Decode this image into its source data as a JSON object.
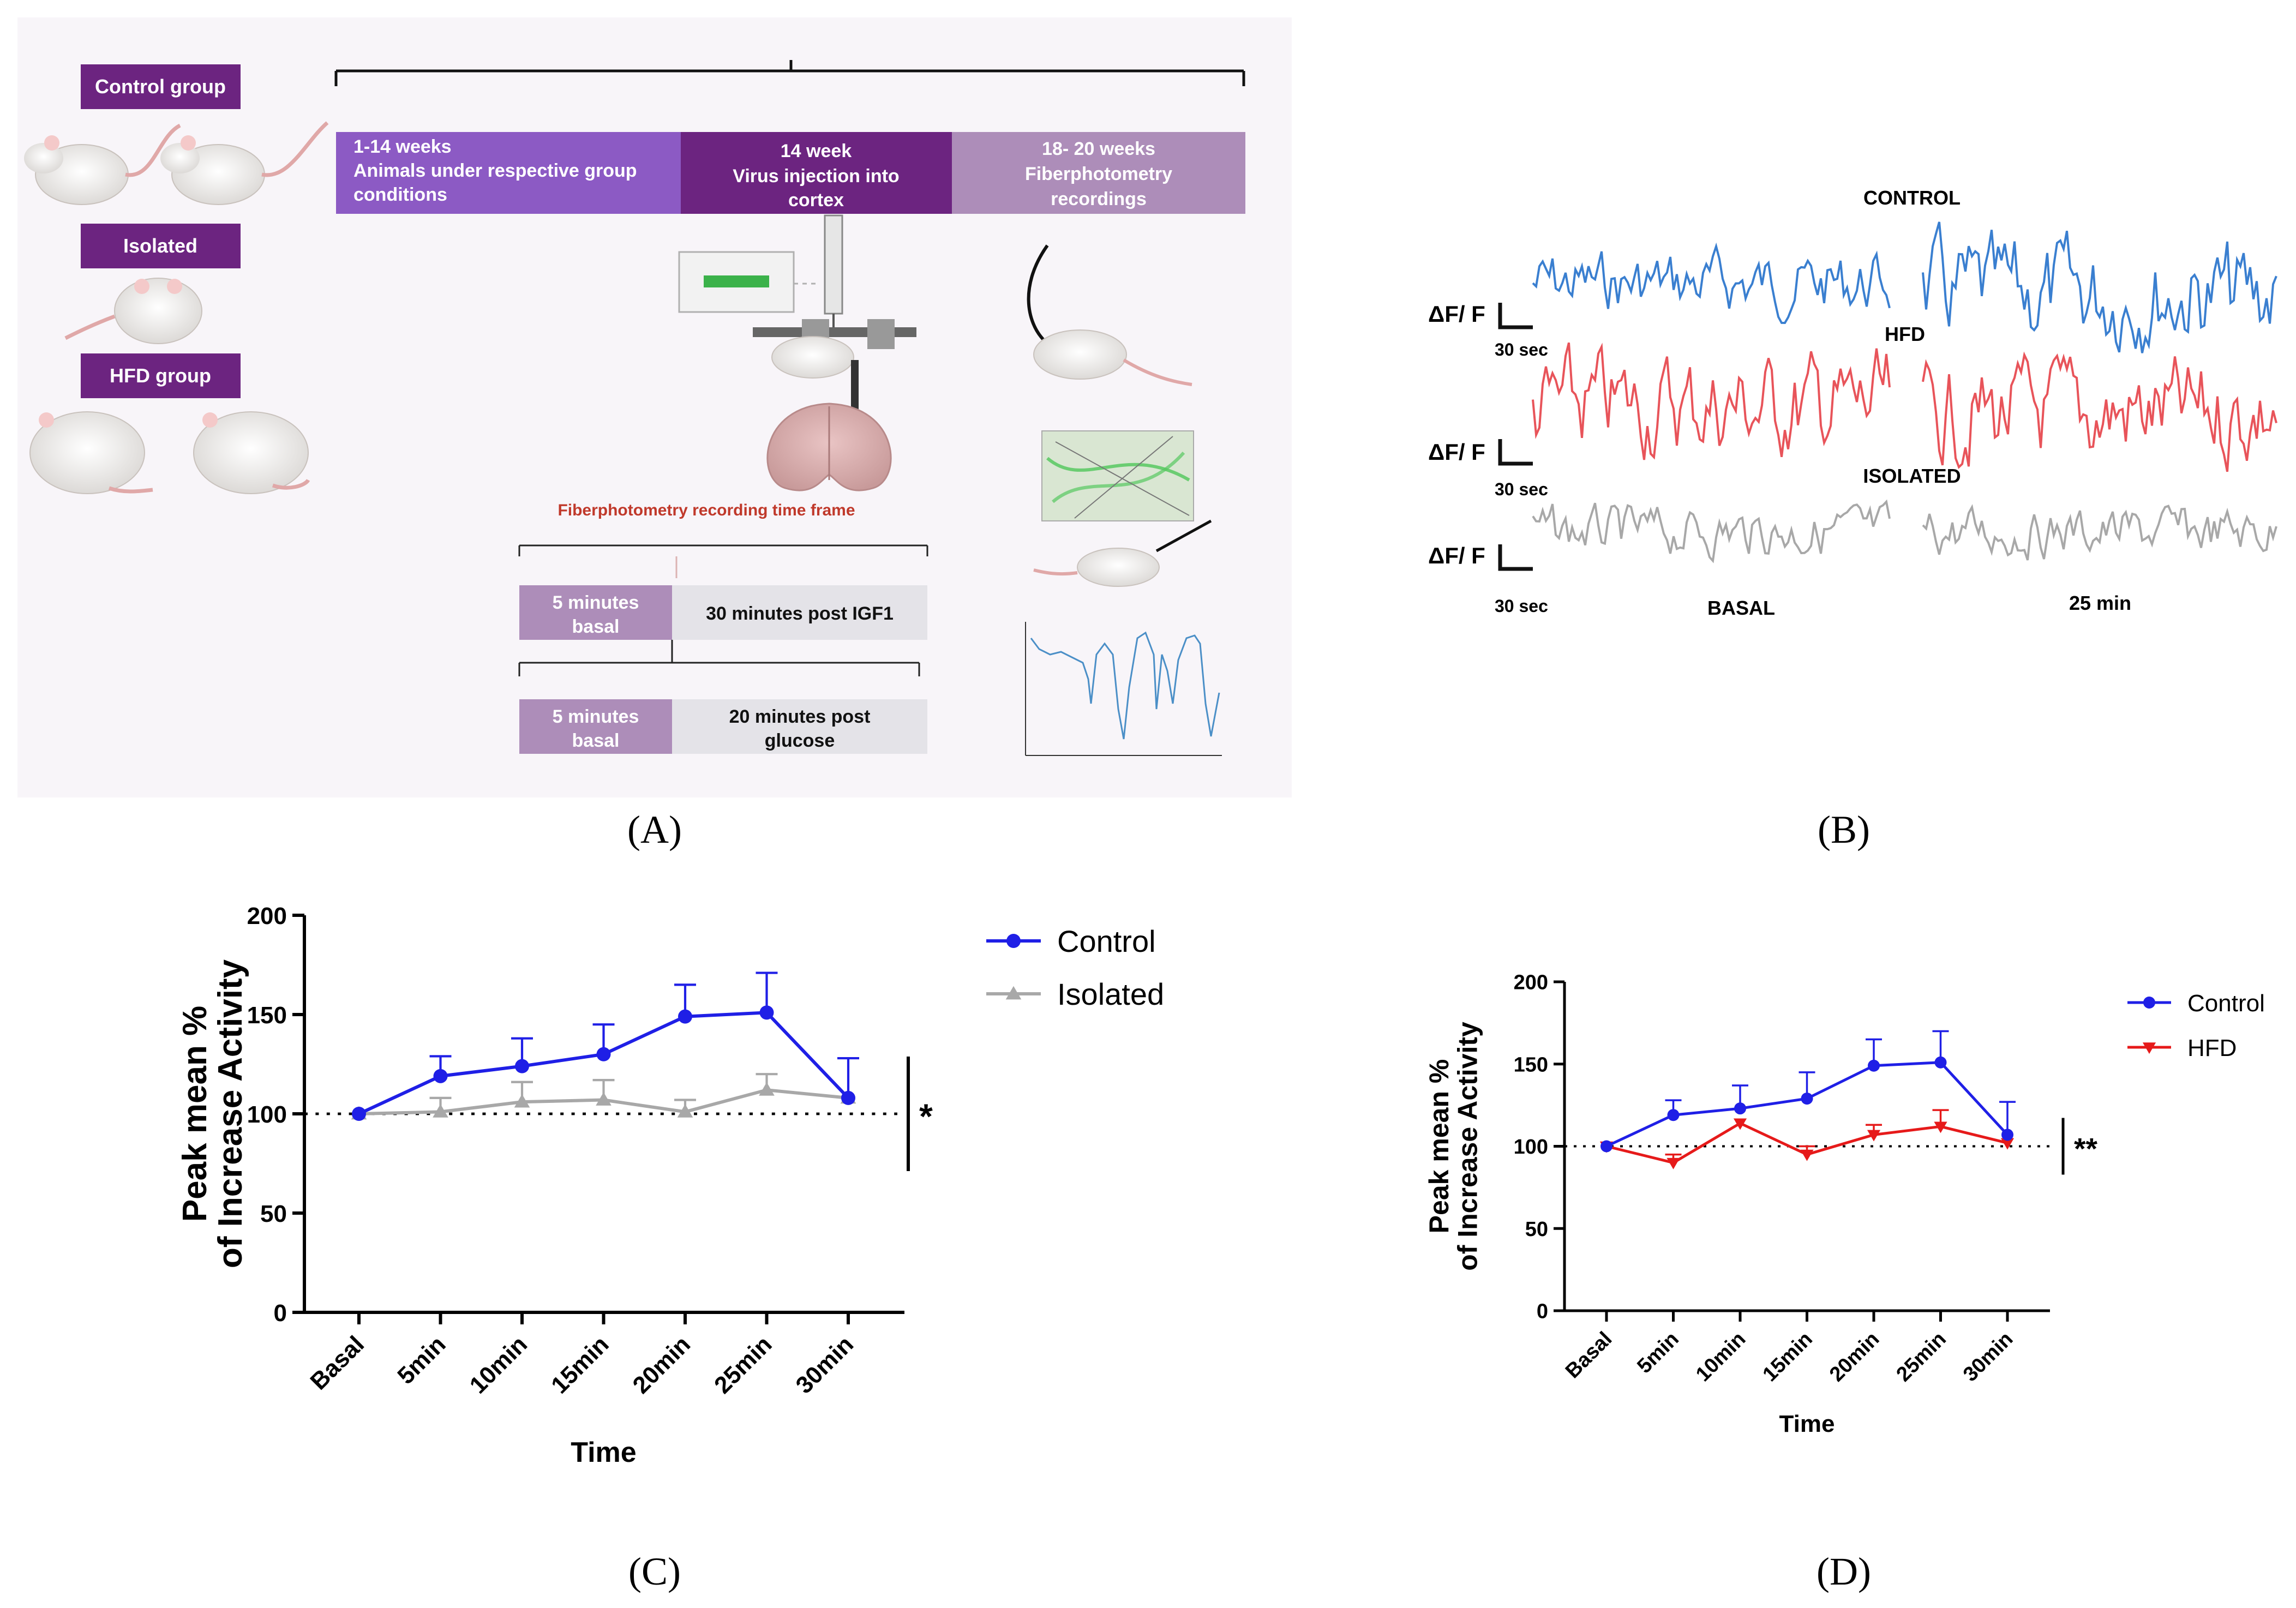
{
  "panels": {
    "a": {
      "label": "(A)",
      "groups": [
        "Control group",
        "Isolated",
        "HFD group"
      ],
      "timeline": [
        {
          "title": "1-14 weeks",
          "text": "Animals under respective group",
          "text2": "conditions"
        },
        {
          "title": "14 week",
          "text": "Virus injection into",
          "text2": "cortex"
        },
        {
          "title": "18- 20 weeks",
          "text": "Fiberphotometry",
          "text2": "recordings"
        }
      ],
      "frame_title": "Fiberphotometry recording time frame",
      "protocol1": {
        "basal": "5 minutes",
        "basal2": "basal",
        "post": "30 minutes post IGF1"
      },
      "protocol2": {
        "basal": "5 minutes",
        "basal2": "basal",
        "post": "20 minutes post",
        "post2": "glucose"
      }
    },
    "b": {
      "label": "(B)",
      "trace_labels": [
        "CONTROL",
        "HFD",
        "ISOLATED"
      ],
      "unit": "ΔF/ F",
      "scale": "30 sec",
      "basal": "BASAL",
      "time25": "25 min",
      "colors": {
        "control": "#3a7fd0",
        "hfd": "#e8545a",
        "isolated": "#a8a8a8"
      }
    }
  },
  "chart_data": [
    {
      "panel": "(C)",
      "type": "line",
      "categories": [
        "Basal",
        "5min",
        "10min",
        "15min",
        "20min",
        "25min",
        "30min"
      ],
      "series": [
        {
          "name": "Control",
          "color": "#1f1fe6",
          "marker": "circle",
          "values": [
            100,
            119,
            124,
            130,
            149,
            151,
            108
          ],
          "errors": [
            0,
            10,
            14,
            15,
            16,
            20,
            20
          ]
        },
        {
          "name": "Isolated",
          "color": "#a8a8a8",
          "marker": "triangle-up",
          "values": [
            100,
            101,
            106,
            107,
            101,
            112,
            108
          ],
          "errors": [
            0,
            7,
            10,
            10,
            6,
            8,
            0
          ]
        }
      ],
      "baseline": 100,
      "ylim": [
        0,
        200
      ],
      "yticks": [
        0,
        50,
        100,
        150,
        200
      ],
      "ylabel": "Peak mean %",
      "ylabel2": "of Increase Activity",
      "xlabel": "Time",
      "significance": "*"
    },
    {
      "panel": "(D)",
      "type": "line",
      "categories": [
        "Basal",
        "5min",
        "10min",
        "15min",
        "20min",
        "25min",
        "30min"
      ],
      "series": [
        {
          "name": "Control",
          "color": "#1f1fe6",
          "marker": "circle",
          "values": [
            100,
            119,
            123,
            129,
            149,
            151,
            107
          ],
          "errors": [
            0,
            9,
            14,
            16,
            16,
            19,
            20
          ]
        },
        {
          "name": "HFD",
          "color": "#e61a1a",
          "marker": "triangle-down",
          "values": [
            100,
            90,
            114,
            95,
            107,
            112,
            102
          ],
          "errors": [
            0,
            5,
            0,
            5,
            6,
            10,
            0
          ]
        }
      ],
      "baseline": 100,
      "ylim": [
        0,
        200
      ],
      "yticks": [
        0,
        50,
        100,
        150,
        200
      ],
      "ylabel": "Peak mean %",
      "ylabel2": "of Increase Activity",
      "xlabel": "Time",
      "significance": "**"
    }
  ]
}
